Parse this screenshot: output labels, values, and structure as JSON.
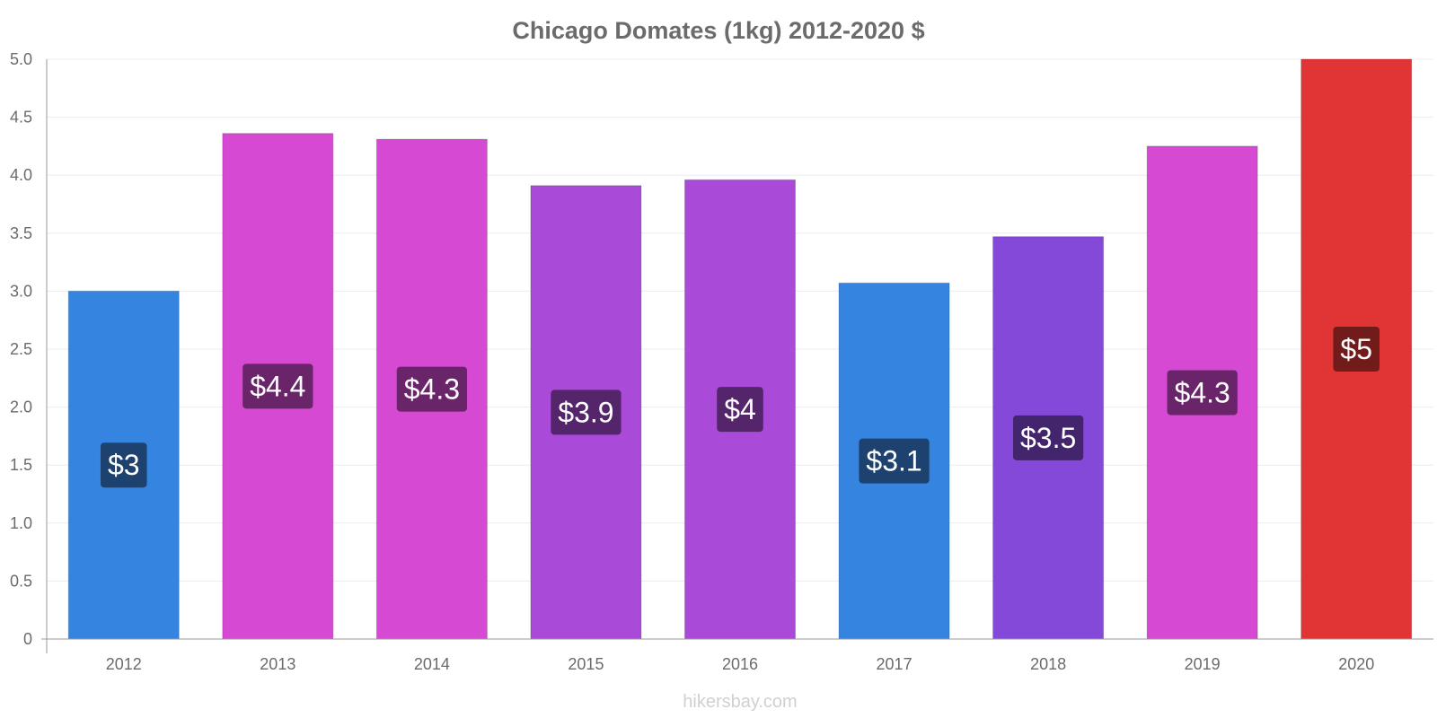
{
  "chart_data": {
    "type": "bar",
    "title": "Chicago Domates (1kg) 2012-2020 $",
    "categories": [
      "2012",
      "2013",
      "2014",
      "2015",
      "2016",
      "2017",
      "2018",
      "2019",
      "2020"
    ],
    "values": [
      3.0,
      4.36,
      4.31,
      3.91,
      3.96,
      3.07,
      3.47,
      4.25,
      5.0
    ],
    "data_labels": [
      "$3",
      "$4.4",
      "$4.3",
      "$3.9",
      "$4",
      "$3.1",
      "$3.5",
      "$4.3",
      "$5"
    ],
    "bar_colors": [
      "#3584e0",
      "#d549d3",
      "#d549d3",
      "#a94ad9",
      "#a94ad9",
      "#3584e0",
      "#8449d9",
      "#d549d3",
      "#e13535"
    ],
    "label_colors": [
      "#1e4270",
      "#6a256a",
      "#6a256a",
      "#55256c",
      "#55256c",
      "#1e4270",
      "#42256c",
      "#6a256a",
      "#711b1b"
    ],
    "yticks": [
      "0",
      "0.5",
      "1.0",
      "1.5",
      "2.0",
      "2.5",
      "3.0",
      "3.5",
      "4.0",
      "4.5",
      "5.0"
    ],
    "ylim": [
      0,
      5
    ],
    "xlabel": "",
    "ylabel": "",
    "grid": true,
    "legend": "none"
  },
  "watermark": "hikersbay.com"
}
